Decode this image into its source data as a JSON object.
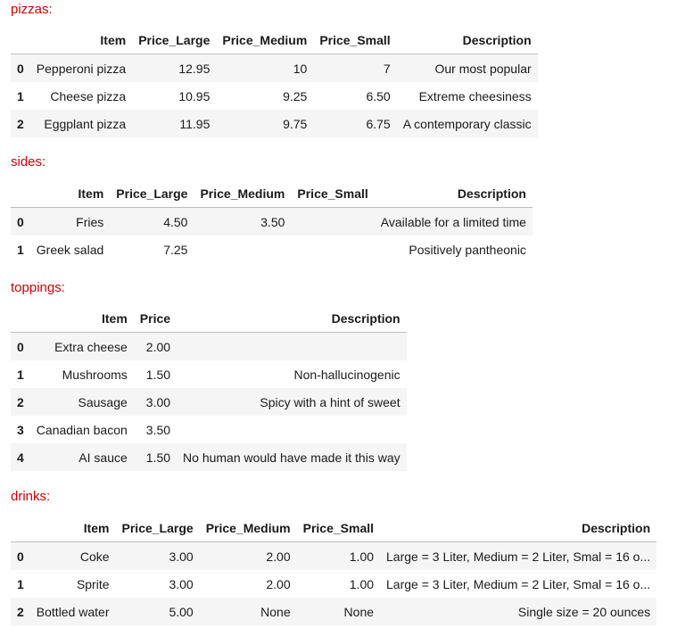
{
  "sections": {
    "pizzas": {
      "label": "pizzas:",
      "columns": [
        "",
        "Item",
        "Price_Large",
        "Price_Medium",
        "Price_Small",
        "Description"
      ],
      "rows": [
        [
          "0",
          "Pepperoni pizza",
          "12.95",
          "10",
          "7",
          "Our most popular"
        ],
        [
          "1",
          "Cheese pizza",
          "10.95",
          "9.25",
          "6.50",
          "Extreme cheesiness"
        ],
        [
          "2",
          "Eggplant pizza",
          "11.95",
          "9.75",
          "6.75",
          "A contemporary classic"
        ]
      ]
    },
    "sides": {
      "label": "sides:",
      "columns": [
        "",
        "Item",
        "Price_Large",
        "Price_Medium",
        "Price_Small",
        "Description"
      ],
      "rows": [
        [
          "0",
          "Fries",
          "4.50",
          "3.50",
          "",
          "Available for a limited time"
        ],
        [
          "1",
          "Greek salad",
          "7.25",
          "",
          "",
          "Positively pantheonic"
        ]
      ]
    },
    "toppings": {
      "label": "toppings:",
      "columns": [
        "",
        "Item",
        "Price",
        "Description"
      ],
      "rows": [
        [
          "0",
          "Extra cheese",
          "2.00",
          ""
        ],
        [
          "1",
          "Mushrooms",
          "1.50",
          "Non-hallucinogenic"
        ],
        [
          "2",
          "Sausage",
          "3.00",
          "Spicy with a hint of sweet"
        ],
        [
          "3",
          "Canadian bacon",
          "3.50",
          ""
        ],
        [
          "4",
          "AI sauce",
          "1.50",
          "No human would have made it this way"
        ]
      ]
    },
    "drinks": {
      "label": "drinks:",
      "columns": [
        "",
        "Item",
        "Price_Large",
        "Price_Medium",
        "Price_Small",
        "Description"
      ],
      "rows": [
        [
          "0",
          "Coke",
          "3.00",
          "2.00",
          "1.00",
          "Large = 3 Liter, Medium = 2 Liter, Smal = 16 o..."
        ],
        [
          "1",
          "Sprite",
          "3.00",
          "2.00",
          "1.00",
          "Large = 3 Liter, Medium = 2 Liter, Smal = 16 o..."
        ],
        [
          "2",
          "Bottled water",
          "5.00",
          "None",
          "None",
          "Single size = 20 ounces"
        ]
      ]
    }
  },
  "colors": {
    "label": "#d40000",
    "row_stripe": "#f5f5f5",
    "header_rule": "#bdbdbd"
  }
}
